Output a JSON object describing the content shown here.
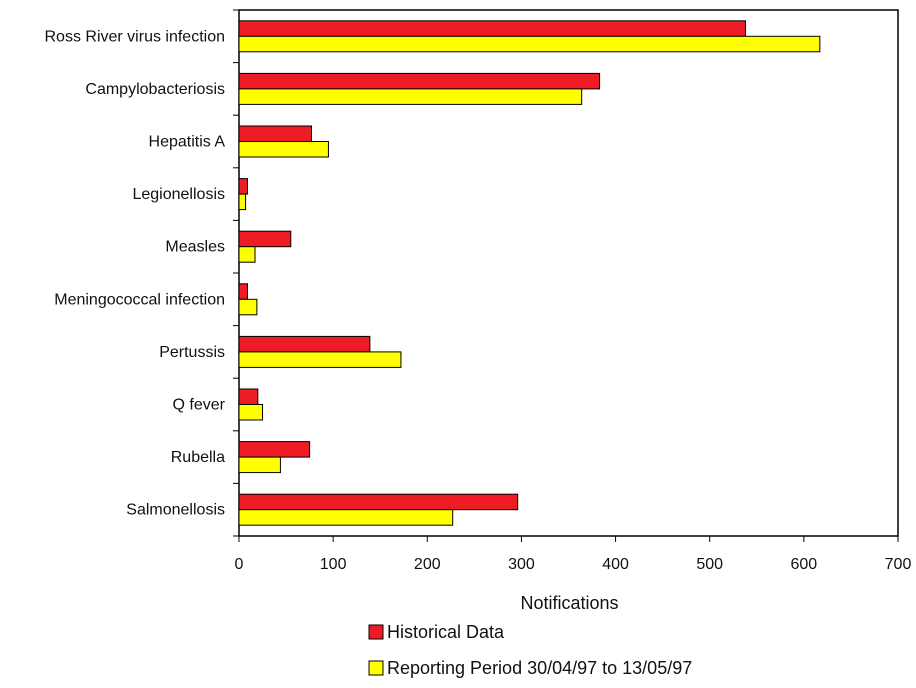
{
  "chart_data": {
    "type": "bar",
    "orientation": "horizontal",
    "categories": [
      "Ross River virus infection",
      "Campylobacteriosis",
      "Hepatitis A",
      "Legionellosis",
      "Measles",
      "Meningococcal infection",
      "Pertussis",
      "Q fever",
      "Rubella",
      "Salmonellosis"
    ],
    "series": [
      {
        "name": "Historical Data",
        "color": "#ee1c25",
        "values": [
          538,
          383,
          77,
          9,
          55,
          9,
          139,
          20,
          75,
          296
        ]
      },
      {
        "name": "Reporting Period 30/04/97 to 13/05/97",
        "color": "#ffff00",
        "values": [
          617,
          364,
          95,
          7,
          17,
          19,
          172,
          25,
          44,
          227
        ]
      }
    ],
    "xlabel": "Notifications",
    "xlim": [
      0,
      700
    ],
    "xticks": [
      0,
      100,
      200,
      300,
      400,
      500,
      600,
      700
    ],
    "grid": false,
    "legend_position": "bottom"
  }
}
